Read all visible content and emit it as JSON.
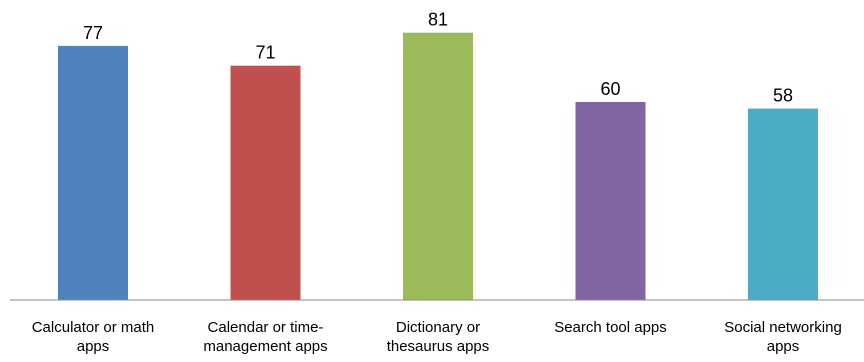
{
  "chart_data": {
    "type": "bar",
    "categories": [
      [
        "Calculator or math",
        "apps"
      ],
      [
        "Calendar or time-",
        "management apps"
      ],
      [
        "Dictionary or",
        "thesaurus apps"
      ],
      [
        "Search tool apps"
      ],
      [
        "Social networking",
        "apps"
      ]
    ],
    "values": [
      77,
      71,
      81,
      60,
      58
    ],
    "value_labels": [
      "77",
      "71",
      "81",
      "60",
      "58"
    ],
    "colors": [
      "#4f81bd",
      "#c0504d",
      "#9bbb59",
      "#8064a2",
      "#4bacc6"
    ],
    "ylim": [
      0,
      100
    ],
    "grid": false,
    "legend": "none"
  }
}
